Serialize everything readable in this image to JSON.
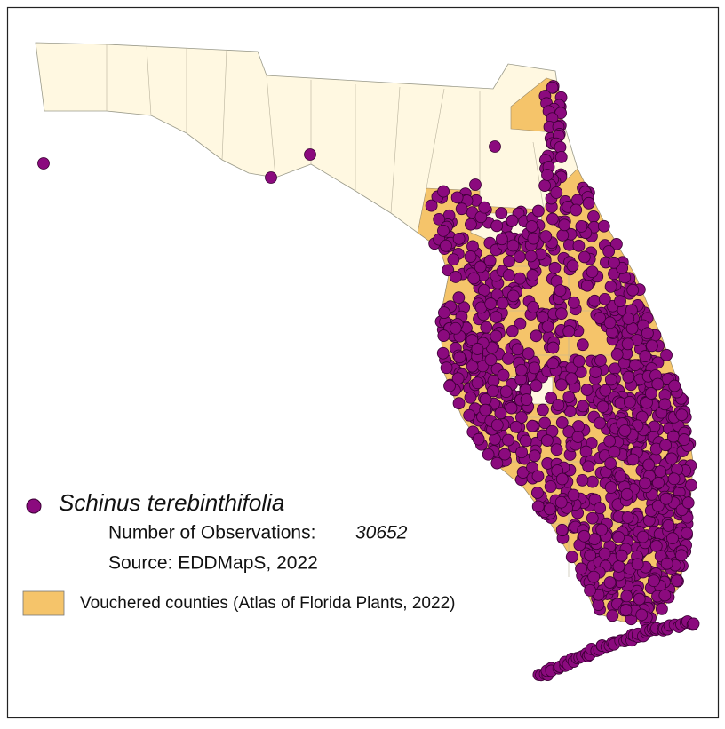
{
  "legend": {
    "species": "Schinus terebinthifolia",
    "observations_label": "Number of Observations:",
    "observations_count": 30652,
    "source": "Source: EDDMapS, 2022",
    "vouchered": "Vouchered counties (Atlas of Florida Plants, 2022)"
  }
}
